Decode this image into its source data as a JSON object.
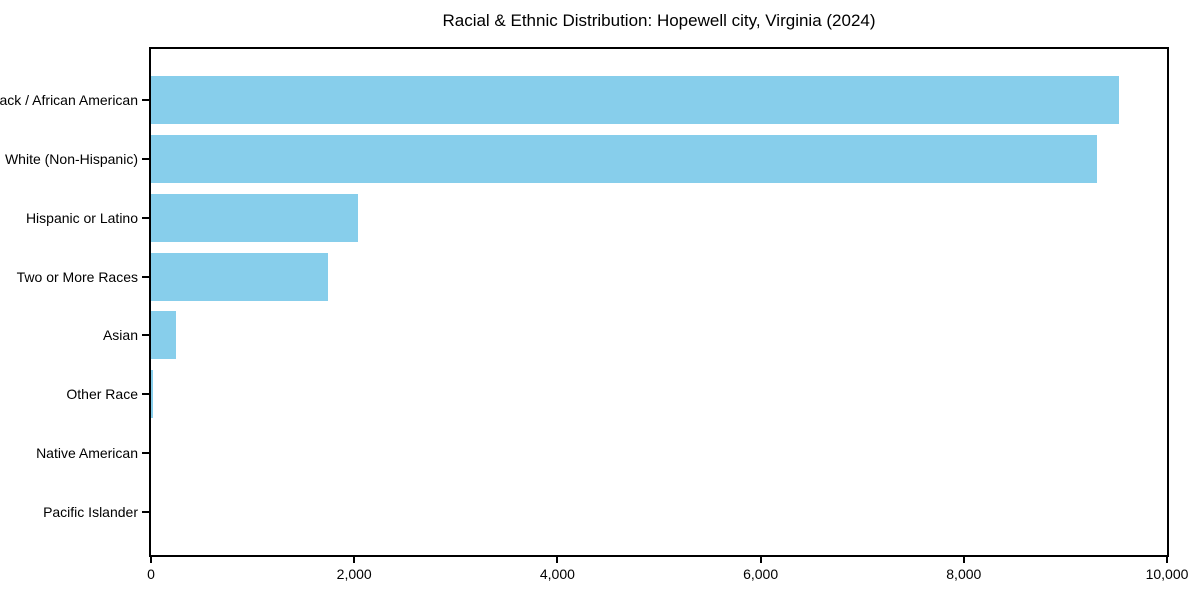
{
  "chart_data": {
    "type": "bar",
    "orientation": "horizontal",
    "title": "Racial & Ethnic Distribution: Hopewell city, Virginia (2024)",
    "categories": [
      "Black / African American",
      "White (Non-Hispanic)",
      "Hispanic or Latino",
      "Two or More Races",
      "Asian",
      "Other Race",
      "Native American",
      "Pacific Islander"
    ],
    "values": [
      9530,
      9310,
      2040,
      1740,
      245,
      15,
      0,
      0
    ],
    "xlabel": "",
    "ylabel": "",
    "xlim": [
      0,
      10000
    ],
    "x_ticks": [
      0,
      2000,
      4000,
      6000,
      8000,
      10000
    ],
    "x_tick_labels": [
      "0",
      "2,000",
      "4,000",
      "6,000",
      "8,000",
      "10,000"
    ],
    "bar_color": "#87CEEB",
    "frame_color": "#000000",
    "background_color": "#ffffff",
    "grid": false,
    "legend": null
  }
}
